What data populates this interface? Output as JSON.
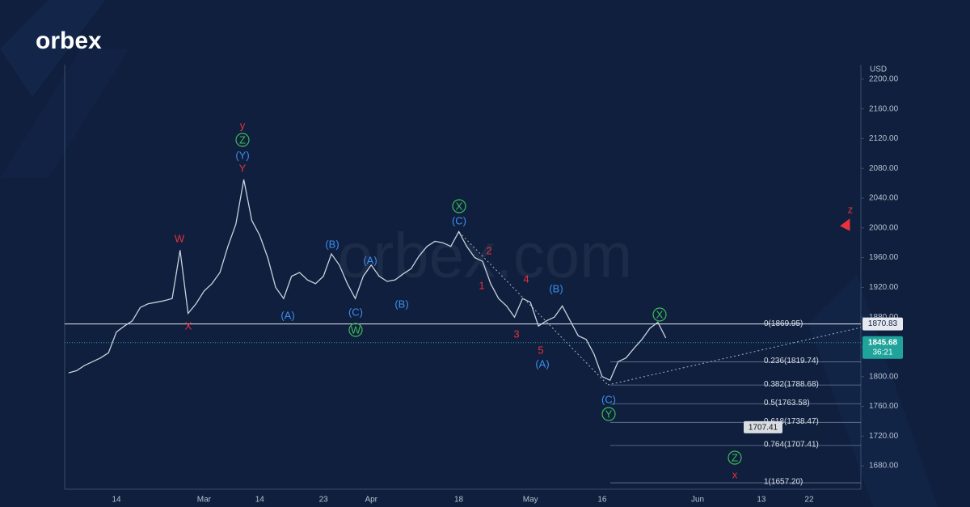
{
  "brand": {
    "logo": "orbex",
    "watermark": "orbex.com"
  },
  "chart_data": {
    "type": "line",
    "y_unit": "USD",
    "categories": [
      null,
      null,
      null,
      null,
      null,
      null,
      "14",
      null,
      null,
      null,
      null,
      null,
      null,
      null,
      null,
      null,
      null,
      "Mar",
      null,
      null,
      null,
      null,
      null,
      null,
      "14",
      null,
      null,
      null,
      null,
      null,
      null,
      null,
      "23",
      null,
      null,
      null,
      null,
      null,
      "Apr",
      null,
      null,
      null,
      null,
      null,
      null,
      null,
      null,
      null,
      null,
      "18",
      null,
      null,
      null,
      null,
      null,
      null,
      null,
      null,
      "May",
      null,
      null,
      null,
      null,
      null,
      null,
      null,
      null,
      "16",
      null,
      null,
      null,
      null,
      null,
      null,
      null,
      null,
      null,
      null,
      null,
      "Jun",
      null,
      null,
      null,
      null,
      null,
      null,
      null,
      "13",
      null,
      null,
      null,
      null,
      null,
      "22",
      null,
      null,
      null,
      null,
      null,
      null
    ],
    "series": [
      {
        "color": "#c9d1de",
        "values": [
          1805,
          1808,
          1815,
          1820,
          1825,
          1832,
          1860,
          1868,
          1875,
          1893,
          1898,
          1900,
          1902,
          1905,
          1970,
          1885,
          1898,
          1915,
          1925,
          1940,
          1975,
          2005,
          2065,
          2010,
          1990,
          1960,
          1920,
          1905,
          1935,
          1940,
          1930,
          1925,
          1935,
          1965,
          1950,
          1925,
          1905,
          1935,
          1950,
          1935,
          1928,
          1930,
          1938,
          1945,
          1962,
          1975,
          1982,
          1980,
          1975,
          1995,
          1975,
          1960,
          1955,
          1925,
          1905,
          1895,
          1880,
          1905,
          1900,
          1868,
          1875,
          1880,
          1895,
          1875,
          1855,
          1850,
          1830,
          1800,
          1795,
          1820,
          1825,
          1838,
          1850,
          1865,
          1873,
          1852,
          null,
          null,
          null,
          null,
          null,
          null,
          null,
          null,
          null,
          null,
          null,
          null,
          null,
          null,
          null,
          null,
          null,
          null,
          null,
          null,
          null,
          null,
          null,
          null
        ]
      },
      {
        "color": "#e8323c",
        "values": [
          null,
          null,
          null,
          null,
          null,
          null,
          null,
          null,
          null,
          null,
          null,
          null,
          null,
          null,
          null,
          null,
          null,
          null,
          null,
          null,
          null,
          null,
          null,
          null,
          null,
          null,
          null,
          null,
          null,
          null,
          null,
          null,
          null,
          null,
          null,
          null,
          null,
          null,
          null,
          null,
          null,
          null,
          null,
          null,
          null,
          null,
          null,
          null,
          null,
          null,
          null,
          null,
          null,
          null,
          null,
          null,
          null,
          null,
          null,
          null,
          null,
          null,
          null,
          null,
          null,
          null,
          null,
          null,
          null,
          null,
          null,
          null,
          null,
          null,
          1870,
          null,
          null,
          null,
          null,
          null,
          null,
          null,
          null,
          null,
          1707,
          null,
          null,
          null,
          null,
          null,
          null,
          null,
          null,
          null,
          null,
          null,
          null,
          null,
          2010,
          null
        ]
      }
    ],
    "ylim": [
      1654,
      2214
    ],
    "yticks": [
      {
        "value": 1680,
        "label": "1680.00"
      },
      {
        "value": 1720,
        "label": "1720.00"
      },
      {
        "value": 1760,
        "label": "1760.00"
      },
      {
        "value": 1800,
        "label": "1800.00"
      },
      {
        "value": 1840,
        "label": "1840.00"
      },
      {
        "value": 1880,
        "label": "1880.00"
      },
      {
        "value": 1920,
        "label": "1920.00"
      },
      {
        "value": 1960,
        "label": "1960.00"
      },
      {
        "value": 2000,
        "label": "2000.00"
      },
      {
        "value": 2040,
        "label": "2040.00"
      },
      {
        "value": 2080,
        "label": "2080.00"
      },
      {
        "value": 2120,
        "label": "2120.00"
      },
      {
        "value": 2160,
        "label": "2160.00"
      },
      {
        "value": 2200,
        "label": "2200.00"
      }
    ],
    "fib_levels": [
      {
        "label": "0(1869.95)",
        "value": 1869.95
      },
      {
        "label": "0.236(1819.74)",
        "value": 1819.74
      },
      {
        "label": "0.382(1788.68)",
        "value": 1788.68
      },
      {
        "label": "0.5(1763.58)",
        "value": 1763.58
      },
      {
        "label": "0.618(1738.47)",
        "value": 1738.47
      },
      {
        "label": "0.764(1707.41)",
        "value": 1707.41
      },
      {
        "label": "1(1657.20)",
        "value": 1657.2
      }
    ],
    "level_line": 1870.83,
    "last_price": 1845.68,
    "countdown": "36:21",
    "target": 1707.41,
    "annotations": [
      {
        "text": "y",
        "color": "#e8323c"
      },
      {
        "text": "Z",
        "color": "#3dbb5a",
        "circled": true
      },
      {
        "text": "(Y)",
        "color": "#3d8ef0"
      },
      {
        "text": "Y",
        "color": "#e8323c"
      },
      {
        "text": "W",
        "color": "#e8323c"
      },
      {
        "text": "X",
        "color": "#e8323c"
      },
      {
        "text": "(A)",
        "color": "#3d8ef0"
      },
      {
        "text": "(B)",
        "color": "#3d8ef0"
      },
      {
        "text": "(C)",
        "color": "#3d8ef0"
      },
      {
        "text": "W",
        "color": "#3dbb5a",
        "circled": true
      },
      {
        "text": "(A)",
        "color": "#3d8ef0"
      },
      {
        "text": "(B)",
        "color": "#3d8ef0"
      },
      {
        "text": "X",
        "color": "#3dbb5a",
        "circled": true
      },
      {
        "text": "(C)",
        "color": "#3d8ef0"
      },
      {
        "text": "2",
        "color": "#e8323c"
      },
      {
        "text": "1",
        "color": "#e8323c"
      },
      {
        "text": "4",
        "color": "#e8323c"
      },
      {
        "text": "3",
        "color": "#e8323c"
      },
      {
        "text": "5",
        "color": "#e8323c"
      },
      {
        "text": "(A)",
        "color": "#3d8ef0"
      },
      {
        "text": "(B)",
        "color": "#3d8ef0"
      },
      {
        "text": "X",
        "color": "#3dbb5a",
        "circled": true
      },
      {
        "text": "(C)",
        "color": "#3d8ef0"
      },
      {
        "text": "Y",
        "color": "#3dbb5a",
        "circled": true
      },
      {
        "text": "Z",
        "color": "#3dbb5a",
        "circled": true
      },
      {
        "text": "x",
        "color": "#e8323c"
      },
      {
        "text": "z",
        "color": "#e8323c"
      }
    ]
  }
}
